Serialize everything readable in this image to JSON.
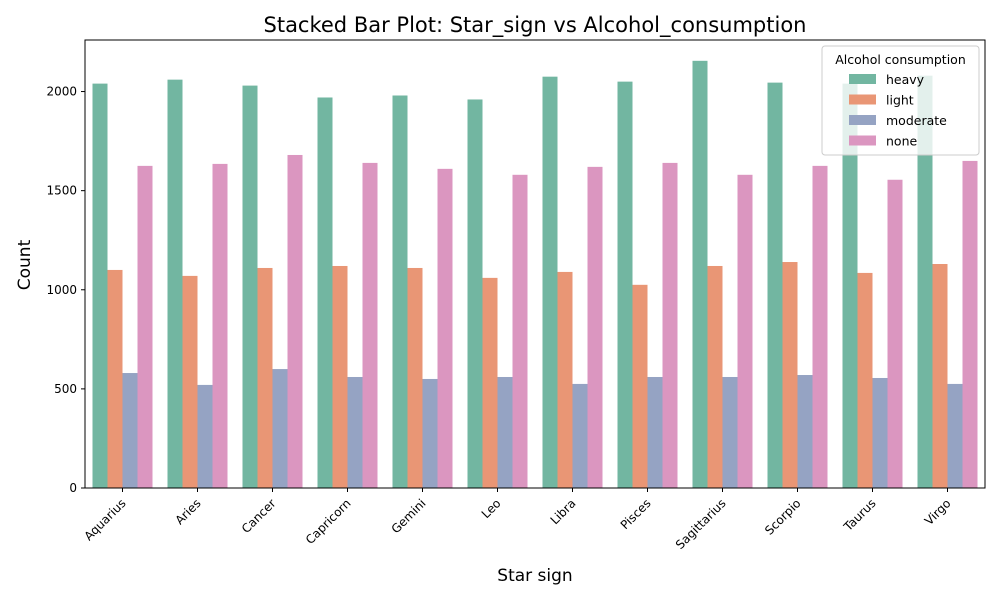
{
  "chart_data": {
    "type": "bar",
    "title": "Stacked Bar Plot: Star_sign vs Alcohol_consumption",
    "xlabel": "Star sign",
    "ylabel": "Count",
    "ylim": [
      0,
      2260
    ],
    "yticks": [
      0,
      500,
      1000,
      1500,
      2000
    ],
    "grid": false,
    "legend": {
      "title": "Alcohol consumption",
      "placement": "top-right"
    },
    "categories": [
      "Aquarius",
      "Aries",
      "Cancer",
      "Capricorn",
      "Gemini",
      "Leo",
      "Libra",
      "Pisces",
      "Sagittarius",
      "Scorpio",
      "Taurus",
      "Virgo"
    ],
    "series": [
      {
        "name": "heavy",
        "color": "#72b6a1",
        "values": [
          2040,
          2060,
          2030,
          1970,
          1980,
          1960,
          2075,
          2050,
          2155,
          2045,
          2040,
          2080
        ]
      },
      {
        "name": "light",
        "color": "#e99675",
        "values": [
          1100,
          1070,
          1110,
          1120,
          1110,
          1060,
          1090,
          1025,
          1120,
          1140,
          1085,
          1130
        ]
      },
      {
        "name": "moderate",
        "color": "#95a3c3",
        "values": [
          580,
          520,
          600,
          560,
          550,
          560,
          525,
          560,
          560,
          570,
          555,
          525
        ]
      },
      {
        "name": "none",
        "color": "#db96c0",
        "values": [
          1625,
          1635,
          1680,
          1640,
          1610,
          1580,
          1620,
          1640,
          1580,
          1625,
          1555,
          1650
        ]
      }
    ]
  }
}
